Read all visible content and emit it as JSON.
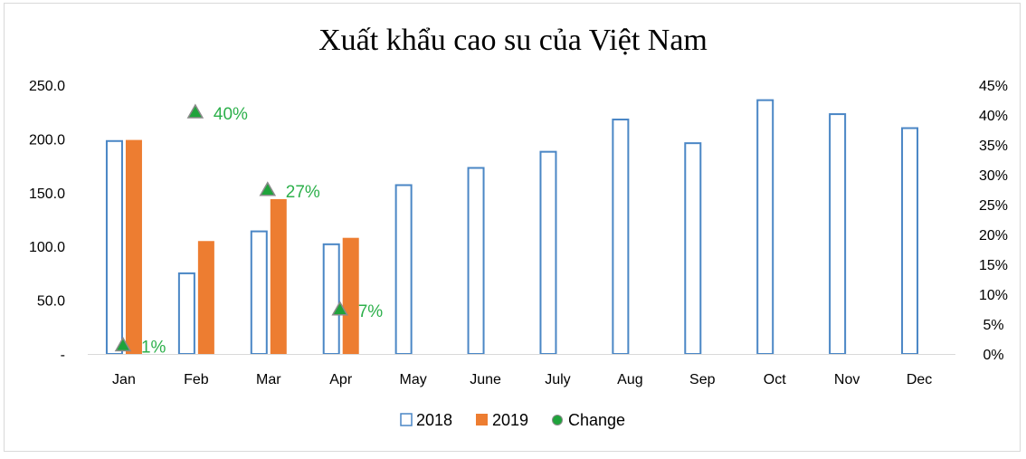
{
  "chart_data": {
    "type": "bar",
    "title": "Xuất khẩu cao su của Việt Nam",
    "categories": [
      "Jan",
      "Feb",
      "Mar",
      "Apr",
      "May",
      "June",
      "July",
      "Aug",
      "Sep",
      "Oct",
      "Nov",
      "Dec"
    ],
    "series": [
      {
        "name": "2018",
        "axis": "left",
        "style": "outline",
        "color": "#4a86c5",
        "values": [
          198,
          75,
          114,
          102,
          157,
          173,
          188,
          218,
          196,
          236,
          223,
          210
        ]
      },
      {
        "name": "2019",
        "axis": "left",
        "style": "filled",
        "color": "#ed7d31",
        "values": [
          199,
          105,
          144,
          108,
          null,
          null,
          null,
          null,
          null,
          null,
          null,
          null
        ]
      },
      {
        "name": "Change",
        "axis": "right",
        "type": "scatter",
        "color": "#2db04b",
        "values": [
          0.01,
          0.4,
          0.27,
          0.07,
          null,
          null,
          null,
          null,
          null,
          null,
          null,
          null
        ],
        "labels": [
          "1%",
          "40%",
          "27%",
          "7%"
        ]
      }
    ],
    "y_left": {
      "min": 0,
      "max": 250,
      "ticks": [
        "-",
        "50.0",
        "100.0",
        "150.0",
        "200.0",
        "250.0"
      ]
    },
    "y_right": {
      "min": 0,
      "max": 0.45,
      "ticks": [
        "0%",
        "5%",
        "10%",
        "15%",
        "20%",
        "25%",
        "30%",
        "35%",
        "40%",
        "45%"
      ]
    },
    "grid": false,
    "legend_position": "bottom"
  }
}
